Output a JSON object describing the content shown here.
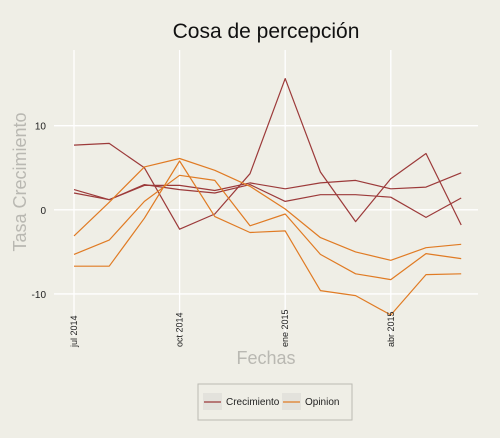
{
  "chart_data": {
    "type": "line",
    "title": "Cosa de percepción",
    "xlabel": "Fechas",
    "ylabel": "Tasa Crecimiento",
    "ylim": [
      -15,
      19
    ],
    "yticks": [
      10,
      0,
      -10
    ],
    "xtick_labels": [
      "jul 2014",
      "oct 2014",
      "ene 2015",
      "abr 2015"
    ],
    "xtick_index": [
      0,
      3,
      6,
      9
    ],
    "x": [
      "jul 2014",
      "ago 2014",
      "sep 2014",
      "oct 2014",
      "nov 2014",
      "dic 2014",
      "ene 2015",
      "feb 2015",
      "mar 2015",
      "abr 2015",
      "may 2015",
      "jun 2015"
    ],
    "grid": true,
    "legend_position": "bottom",
    "groups": [
      {
        "name": "Crecimiento",
        "color": "#9c3a3a",
        "lines": [
          [
            7.7,
            7.9,
            5.0,
            -2.3,
            -0.5,
            4.3,
            15.6,
            4.5,
            -1.4,
            3.7,
            6.7,
            -1.8
          ],
          [
            2.4,
            1.2,
            2.9,
            2.9,
            2.3,
            3.2,
            2.5,
            3.2,
            3.5,
            2.5,
            2.7,
            4.4
          ],
          [
            2.0,
            1.2,
            3.0,
            2.4,
            2.0,
            3.0,
            1.0,
            1.8,
            1.8,
            1.5,
            -0.9,
            1.4
          ]
        ]
      },
      {
        "name": "Opinion",
        "color": "#e07b24",
        "lines": [
          [
            -3.1,
            0.9,
            5.1,
            6.1,
            4.7,
            2.8,
            0.1,
            -3.3,
            -5.0,
            -6.0,
            -4.5,
            -4.1
          ],
          [
            -5.3,
            -3.6,
            1.0,
            4.1,
            3.5,
            -1.9,
            -0.5,
            -5.3,
            -7.6,
            -8.3,
            -5.2,
            -5.8
          ],
          [
            -6.7,
            -6.7,
            -1.0,
            5.8,
            -0.8,
            -2.7,
            -2.5,
            -9.6,
            -10.2,
            -12.5,
            -7.7,
            -7.6
          ]
        ]
      }
    ]
  }
}
